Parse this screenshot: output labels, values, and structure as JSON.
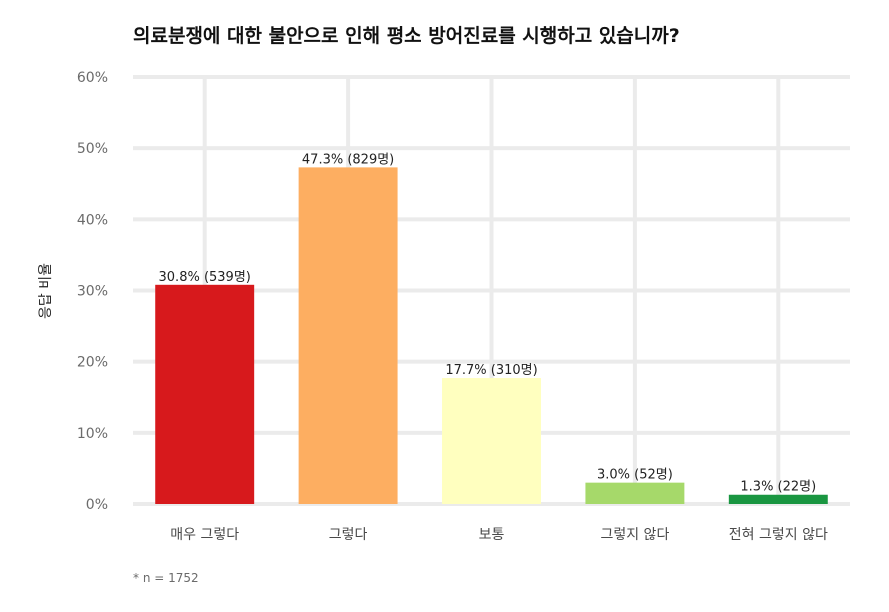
{
  "chart_data": {
    "type": "bar",
    "title": "의료분쟁에 대한 불안으로 인해 평소 방어진료를 시행하고 있습니까?",
    "xlabel": "",
    "ylabel": "응답 비율",
    "ylim": [
      0,
      60
    ],
    "yticks": [
      0,
      10,
      20,
      30,
      40,
      50,
      60
    ],
    "ytick_labels": [
      "0%",
      "10%",
      "20%",
      "30%",
      "40%",
      "50%",
      "60%"
    ],
    "grid": true,
    "legend": "none",
    "categories": [
      "매우 그렇다",
      "그렇다",
      "보통",
      "그렇지 않다",
      "전혀 그렇지 않다"
    ],
    "values": [
      30.8,
      47.3,
      17.7,
      3.0,
      1.3
    ],
    "data_labels": [
      "30.8% (539명)",
      "47.3% (829명)",
      "17.7% (310명)",
      "3.0% (52명)",
      "1.3% (22명)"
    ],
    "colors": [
      "#d7191c",
      "#fdae61",
      "#ffffbf",
      "#a6d96a",
      "#1a9641"
    ],
    "footnote": "* n = 1752"
  }
}
